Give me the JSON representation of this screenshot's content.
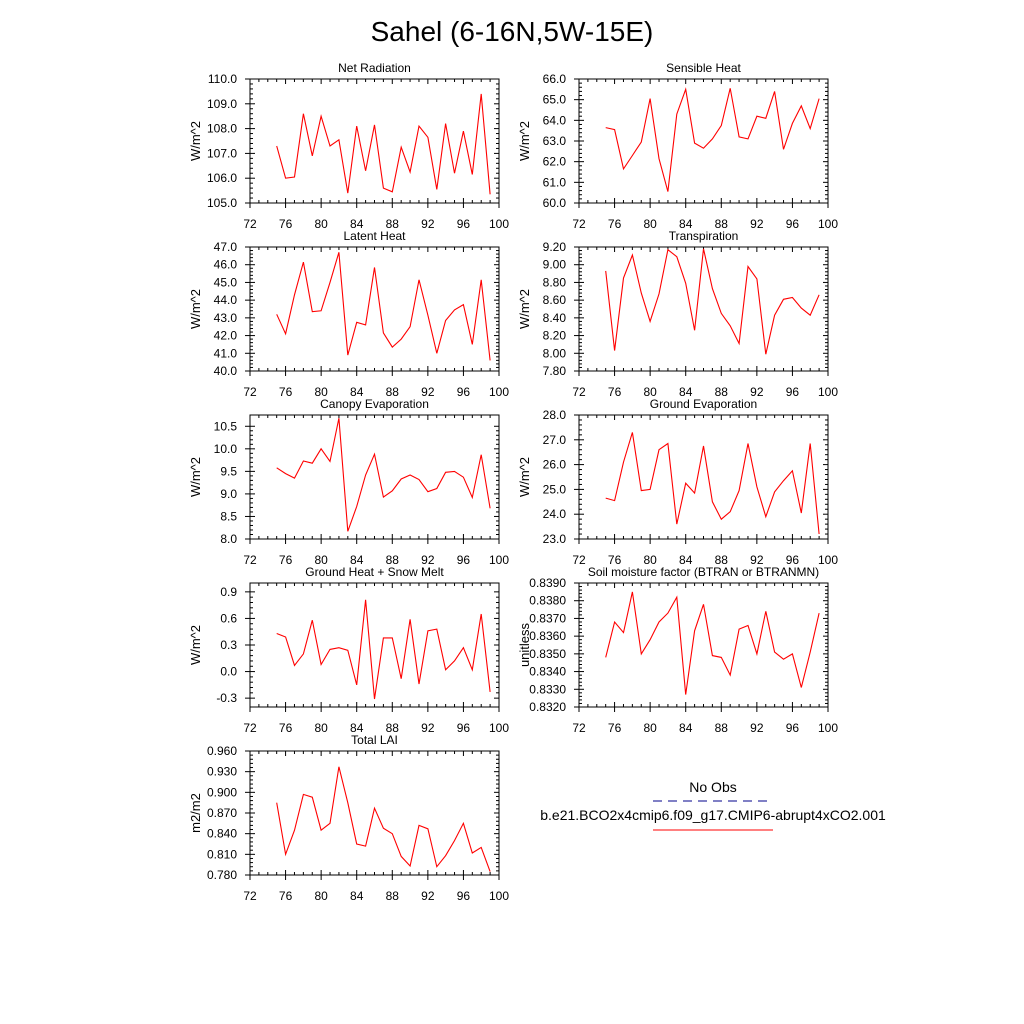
{
  "title": "Sahel (6-16N,5W-15E)",
  "colors": {
    "series": "#ff0000",
    "obs": "#00008b",
    "axis": "#000000",
    "background": "#ffffff"
  },
  "legend": {
    "obs_label": "No Obs",
    "model_label": "b.e21.BCO2x4cmip6.f09_g17.CMIP6-abrupt4xCO2.001"
  },
  "chart_data": [
    {
      "type": "line",
      "title": "Net Radiation",
      "ylabel": "W/m^2",
      "xlim": [
        72,
        100
      ],
      "xticks": [
        72,
        76,
        80,
        84,
        88,
        92,
        96,
        100
      ],
      "ylim": [
        105.0,
        110.0
      ],
      "yticks": [
        105.0,
        106.0,
        107.0,
        108.0,
        109.0,
        110.0
      ],
      "ytick_labels": [
        "105.0",
        "106.0",
        "107.0",
        "108.0",
        "109.0",
        "110.0"
      ],
      "x": [
        75,
        76,
        77,
        78,
        79,
        80,
        81,
        82,
        83,
        84,
        85,
        86,
        87,
        88,
        89,
        90,
        91,
        92,
        93,
        94,
        95,
        96,
        97,
        98,
        99
      ],
      "series": [
        {
          "name": "b.e21.BCO2x4cmip6.f09_g17.CMIP6-abrupt4xCO2.001",
          "values": [
            107.3,
            106.0,
            106.05,
            108.6,
            106.9,
            108.5,
            107.3,
            107.55,
            105.4,
            108.1,
            106.3,
            108.15,
            105.6,
            105.45,
            107.25,
            106.25,
            108.1,
            107.65,
            105.55,
            108.2,
            106.2,
            107.9,
            106.15,
            109.4,
            105.35
          ]
        }
      ]
    },
    {
      "type": "line",
      "title": "Sensible Heat",
      "ylabel": "W/m^2",
      "xlim": [
        72,
        100
      ],
      "xticks": [
        72,
        76,
        80,
        84,
        88,
        92,
        96,
        100
      ],
      "ylim": [
        60.0,
        66.0
      ],
      "yticks": [
        60.0,
        61.0,
        62.0,
        63.0,
        64.0,
        65.0,
        66.0
      ],
      "ytick_labels": [
        "60.0",
        "61.0",
        "62.0",
        "63.0",
        "64.0",
        "65.0",
        "66.0"
      ],
      "x": [
        75,
        76,
        77,
        78,
        79,
        80,
        81,
        82,
        83,
        84,
        85,
        86,
        87,
        88,
        89,
        90,
        91,
        92,
        93,
        94,
        95,
        96,
        97,
        98,
        99
      ],
      "series": [
        {
          "name": "b.e21.BCO2x4cmip6.f09_g17.CMIP6-abrupt4xCO2.001",
          "values": [
            63.65,
            63.55,
            61.65,
            62.3,
            62.95,
            65.05,
            62.15,
            60.55,
            64.3,
            65.5,
            62.9,
            62.65,
            63.1,
            63.75,
            65.55,
            63.2,
            63.1,
            64.2,
            64.1,
            65.4,
            62.6,
            63.85,
            64.7,
            63.6,
            65.05
          ]
        }
      ]
    },
    {
      "type": "line",
      "title": "Latent Heat",
      "ylabel": "W/m^2",
      "xlim": [
        72,
        100
      ],
      "xticks": [
        72,
        76,
        80,
        84,
        88,
        92,
        96,
        100
      ],
      "ylim": [
        40.0,
        47.0
      ],
      "yticks": [
        40.0,
        41.0,
        42.0,
        43.0,
        44.0,
        45.0,
        46.0,
        47.0
      ],
      "ytick_labels": [
        "40.0",
        "41.0",
        "42.0",
        "43.0",
        "44.0",
        "45.0",
        "46.0",
        "47.0"
      ],
      "x": [
        75,
        76,
        77,
        78,
        79,
        80,
        81,
        82,
        83,
        84,
        85,
        86,
        87,
        88,
        89,
        90,
        91,
        92,
        93,
        94,
        95,
        96,
        97,
        98,
        99
      ],
      "series": [
        {
          "name": "b.e21.BCO2x4cmip6.f09_g17.CMIP6-abrupt4xCO2.001",
          "values": [
            43.2,
            42.1,
            44.3,
            46.15,
            43.35,
            43.4,
            45.0,
            46.7,
            40.9,
            42.75,
            42.6,
            45.85,
            42.15,
            41.35,
            41.8,
            42.5,
            45.15,
            43.15,
            41.0,
            42.85,
            43.45,
            43.75,
            41.5,
            45.15,
            40.6
          ]
        }
      ]
    },
    {
      "type": "line",
      "title": "Transpiration",
      "ylabel": "W/m^2",
      "xlim": [
        72,
        100
      ],
      "xticks": [
        72,
        76,
        80,
        84,
        88,
        92,
        96,
        100
      ],
      "ylim": [
        7.8,
        9.2
      ],
      "yticks": [
        7.8,
        8.0,
        8.2,
        8.4,
        8.6,
        8.8,
        9.0,
        9.2
      ],
      "ytick_labels": [
        "7.80",
        "8.00",
        "8.20",
        "8.40",
        "8.60",
        "8.80",
        "9.00",
        "9.20"
      ],
      "x": [
        75,
        76,
        77,
        78,
        79,
        80,
        81,
        82,
        83,
        84,
        85,
        86,
        87,
        88,
        89,
        90,
        91,
        92,
        93,
        94,
        95,
        96,
        97,
        98,
        99
      ],
      "series": [
        {
          "name": "b.e21.BCO2x4cmip6.f09_g17.CMIP6-abrupt4xCO2.001",
          "values": [
            8.93,
            8.03,
            8.85,
            9.11,
            8.68,
            8.36,
            8.67,
            9.17,
            9.09,
            8.79,
            8.26,
            9.18,
            8.73,
            8.45,
            8.31,
            8.11,
            8.98,
            8.84,
            7.99,
            8.43,
            8.61,
            8.63,
            8.51,
            8.43,
            8.66
          ]
        }
      ]
    },
    {
      "type": "line",
      "title": "Canopy Evaporation",
      "ylabel": "W/m^2",
      "xlim": [
        72,
        100
      ],
      "xticks": [
        72,
        76,
        80,
        84,
        88,
        92,
        96,
        100
      ],
      "ylim": [
        8.0,
        10.75
      ],
      "yticks": [
        8.0,
        8.5,
        9.0,
        9.5,
        10.0,
        10.5
      ],
      "ytick_labels": [
        "8.0",
        "8.5",
        "9.0",
        "9.5",
        "10.0",
        "10.5"
      ],
      "x": [
        75,
        76,
        77,
        78,
        79,
        80,
        81,
        82,
        83,
        84,
        85,
        86,
        87,
        88,
        89,
        90,
        91,
        92,
        93,
        94,
        95,
        96,
        97,
        98,
        99
      ],
      "series": [
        {
          "name": "b.e21.BCO2x4cmip6.f09_g17.CMIP6-abrupt4xCO2.001",
          "values": [
            9.58,
            9.45,
            9.35,
            9.73,
            9.68,
            10.0,
            9.72,
            10.68,
            8.17,
            8.72,
            9.42,
            9.88,
            8.93,
            9.07,
            9.33,
            9.42,
            9.32,
            9.05,
            9.12,
            9.48,
            9.5,
            9.37,
            8.92,
            9.87,
            8.68
          ]
        }
      ]
    },
    {
      "type": "line",
      "title": "Ground Evaporation",
      "ylabel": "W/m^2",
      "xlim": [
        72,
        100
      ],
      "xticks": [
        72,
        76,
        80,
        84,
        88,
        92,
        96,
        100
      ],
      "ylim": [
        23.0,
        28.0
      ],
      "yticks": [
        23.0,
        24.0,
        25.0,
        26.0,
        27.0,
        28.0
      ],
      "ytick_labels": [
        "23.0",
        "24.0",
        "25.0",
        "26.0",
        "27.0",
        "28.0"
      ],
      "x": [
        75,
        76,
        77,
        78,
        79,
        80,
        81,
        82,
        83,
        84,
        85,
        86,
        87,
        88,
        89,
        90,
        91,
        92,
        93,
        94,
        95,
        96,
        97,
        98,
        99
      ],
      "series": [
        {
          "name": "b.e21.BCO2x4cmip6.f09_g17.CMIP6-abrupt4xCO2.001",
          "values": [
            24.65,
            24.55,
            26.1,
            27.3,
            24.95,
            25.0,
            26.6,
            26.85,
            23.6,
            25.25,
            24.85,
            26.75,
            24.5,
            23.8,
            24.1,
            24.95,
            26.85,
            25.1,
            23.9,
            24.9,
            25.35,
            25.75,
            24.05,
            26.85,
            23.2
          ]
        }
      ]
    },
    {
      "type": "line",
      "title": "Ground Heat + Snow Melt",
      "ylabel": "W/m^2",
      "xlim": [
        72,
        100
      ],
      "xticks": [
        72,
        76,
        80,
        84,
        88,
        92,
        96,
        100
      ],
      "ylim": [
        -0.4,
        1.0
      ],
      "yticks": [
        -0.3,
        0.0,
        0.3,
        0.6,
        0.9
      ],
      "ytick_labels": [
        "-0.3",
        "0.0",
        "0.3",
        "0.6",
        "0.9"
      ],
      "x": [
        75,
        76,
        77,
        78,
        79,
        80,
        81,
        82,
        83,
        84,
        85,
        86,
        87,
        88,
        89,
        90,
        91,
        92,
        93,
        94,
        95,
        96,
        97,
        98,
        99
      ],
      "series": [
        {
          "name": "b.e21.BCO2x4cmip6.f09_g17.CMIP6-abrupt4xCO2.001",
          "values": [
            0.43,
            0.39,
            0.07,
            0.2,
            0.58,
            0.08,
            0.25,
            0.27,
            0.24,
            -0.15,
            0.81,
            -0.31,
            0.38,
            0.38,
            -0.08,
            0.59,
            -0.14,
            0.46,
            0.48,
            0.02,
            0.12,
            0.27,
            0.02,
            0.65,
            -0.23
          ]
        }
      ]
    },
    {
      "type": "line",
      "title": "Soil moisture factor (BTRAN or BTRANMN)",
      "ylabel": "unitless",
      "xlim": [
        72,
        100
      ],
      "xticks": [
        72,
        76,
        80,
        84,
        88,
        92,
        96,
        100
      ],
      "ylim": [
        0.832,
        0.839
      ],
      "yticks": [
        0.832,
        0.833,
        0.834,
        0.835,
        0.836,
        0.837,
        0.838,
        0.839
      ],
      "ytick_labels": [
        "0.8320",
        "0.8330",
        "0.8340",
        "0.8350",
        "0.8360",
        "0.8370",
        "0.8380",
        "0.8390"
      ],
      "x": [
        75,
        76,
        77,
        78,
        79,
        80,
        81,
        82,
        83,
        84,
        85,
        86,
        87,
        88,
        89,
        90,
        91,
        92,
        93,
        94,
        95,
        96,
        97,
        98,
        99
      ],
      "series": [
        {
          "name": "b.e21.BCO2x4cmip6.f09_g17.CMIP6-abrupt4xCO2.001",
          "values": [
            0.8348,
            0.8368,
            0.8362,
            0.8385,
            0.835,
            0.8358,
            0.8368,
            0.8373,
            0.8382,
            0.8327,
            0.8363,
            0.8378,
            0.8349,
            0.8348,
            0.8338,
            0.8364,
            0.8366,
            0.835,
            0.8374,
            0.8351,
            0.8347,
            0.835,
            0.8331,
            0.8351,
            0.8373
          ]
        }
      ]
    },
    {
      "type": "line",
      "title": "Total LAI",
      "ylabel": "m2/m2",
      "xlim": [
        72,
        100
      ],
      "xticks": [
        72,
        76,
        80,
        84,
        88,
        92,
        96,
        100
      ],
      "ylim": [
        0.78,
        0.96
      ],
      "yticks": [
        0.78,
        0.81,
        0.84,
        0.87,
        0.9,
        0.93,
        0.96
      ],
      "ytick_labels": [
        "0.780",
        "0.810",
        "0.840",
        "0.870",
        "0.900",
        "0.930",
        "0.960"
      ],
      "x": [
        75,
        76,
        77,
        78,
        79,
        80,
        81,
        82,
        83,
        84,
        85,
        86,
        87,
        88,
        89,
        90,
        91,
        92,
        93,
        94,
        95,
        96,
        97,
        98,
        99
      ],
      "series": [
        {
          "name": "b.e21.BCO2x4cmip6.f09_g17.CMIP6-abrupt4xCO2.001",
          "values": [
            0.885,
            0.81,
            0.845,
            0.897,
            0.893,
            0.845,
            0.855,
            0.937,
            0.885,
            0.825,
            0.822,
            0.877,
            0.848,
            0.84,
            0.807,
            0.793,
            0.852,
            0.847,
            0.792,
            0.808,
            0.83,
            0.855,
            0.812,
            0.82,
            0.785
          ]
        }
      ]
    }
  ]
}
